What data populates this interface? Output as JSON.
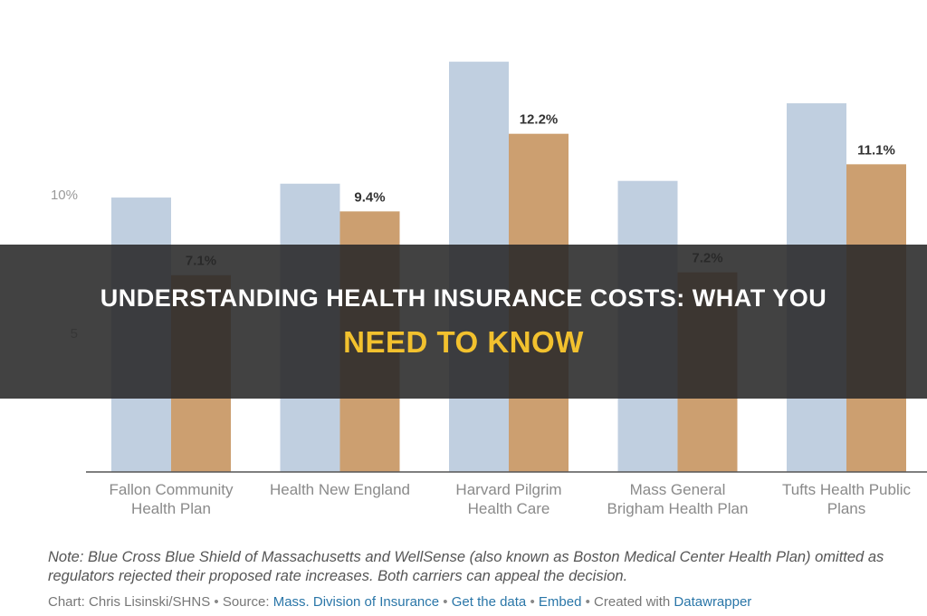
{
  "chart_data": {
    "type": "bar",
    "categories": [
      [
        "Fallon Community",
        "Health Plan"
      ],
      [
        "Health New England"
      ],
      [
        "Harvard Pilgrim",
        "Health Care"
      ],
      [
        "Mass General",
        "Brigham Health Plan"
      ],
      [
        "Tufts Health Public",
        "Plans"
      ]
    ],
    "series": [
      {
        "values": [
          9.9,
          10.4,
          14.8,
          10.5,
          13.3
        ],
        "color": "#c0cfe0"
      },
      {
        "values": [
          7.1,
          9.4,
          12.2,
          7.2,
          11.1
        ],
        "color": "#cc9f70",
        "data_labels": [
          "7.1%",
          "9.4%",
          "12.2%",
          "7.2%",
          "11.1%"
        ]
      }
    ],
    "ylim": [
      0,
      15
    ],
    "y_ticks": [
      {
        "value": 10,
        "label": "10%"
      },
      {
        "value": 5,
        "label": "5"
      }
    ],
    "grid": false
  },
  "note": {
    "line1": "Note: Blue Cross Blue Shield of Massachusetts and WellSense (also known as Boston Medical Center Health Plan) omitted as",
    "line2": "regulators rejected their proposed rate increases. Both carriers can appeal the decision."
  },
  "credit": {
    "chart_by": "Chart: Chris Lisinski/SHNS",
    "separator": "•",
    "source_label": "Source:",
    "source_link": "Mass. Division of Insurance",
    "get_data": "Get the data",
    "embed": "Embed",
    "created_with": "Created with",
    "datawrapper": "Datawrapper"
  },
  "banner": {
    "line1": "UNDERSTANDING HEALTH INSURANCE COSTS: WHAT YOU",
    "line2": "NEED TO KNOW"
  }
}
